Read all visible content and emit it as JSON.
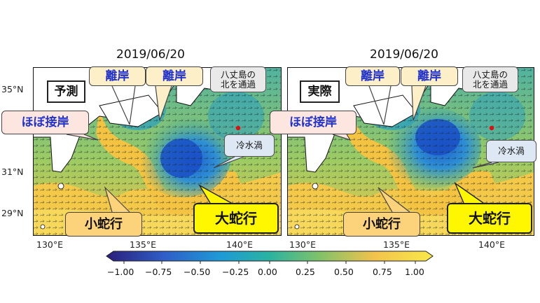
{
  "panels": [
    {
      "date": "2019/06/20",
      "tag": "予測",
      "labels": {
        "rigan1": "離岸",
        "rigan2": "離岸",
        "hobo": "ほぼ接岸",
        "hachijo": "八丈島の\n北を通過",
        "reisui": "冷水渦",
        "small": "小蛇行",
        "large": "大蛇行"
      }
    },
    {
      "date": "2019/06/20",
      "tag": "実際",
      "labels": {
        "rigan1": "離岸",
        "rigan2": "離岸",
        "hobo": "ほぼ接岸",
        "hachijo": "八丈島の\n北を通過",
        "reisui": "冷水渦",
        "small": "小蛇行",
        "large": "大蛇行"
      }
    }
  ],
  "lat_ticks": [
    "35°N",
    "31°N",
    "29°N"
  ],
  "lon_ticks_left": [
    "130°E",
    "135°E",
    "140°E"
  ],
  "lon_ticks_right": [
    "130°E",
    "135°E",
    "140°E"
  ],
  "colorbar": {
    "ticks": [
      "−1.00",
      "−0.75",
      "−0.50",
      "−0.25",
      "0.00",
      "0.25",
      "0.50",
      "0.75",
      "1.00"
    ],
    "colors": [
      "#2a1f7a",
      "#2f5fc8",
      "#1e9ad6",
      "#2bb3a0",
      "#7ec26a",
      "#f2c24c",
      "#f9e84a"
    ]
  }
}
